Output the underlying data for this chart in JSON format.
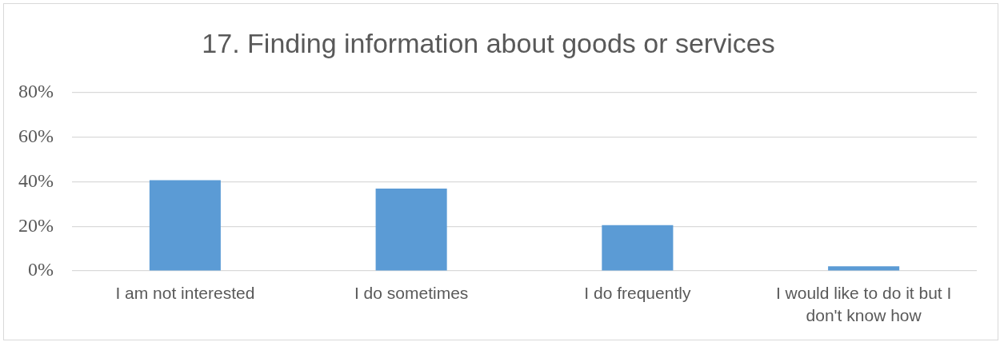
{
  "chart_data": {
    "type": "bar",
    "title": "17. Finding information about goods or services",
    "categories": [
      "I am not interested",
      "I do sometimes",
      "I do frequently",
      "I would like to do it but I don't know how"
    ],
    "values": [
      40.7,
      36.9,
      20.6,
      2.1
    ],
    "color": "#5b9bd5",
    "ylim": [
      0,
      80
    ],
    "yticks": [
      {
        "value": 0,
        "label": "0%"
      },
      {
        "value": 20,
        "label": "20%"
      },
      {
        "value": 40,
        "label": "40%"
      },
      {
        "value": 60,
        "label": "60%"
      },
      {
        "value": 80,
        "label": "80%"
      }
    ],
    "grid": "y"
  }
}
